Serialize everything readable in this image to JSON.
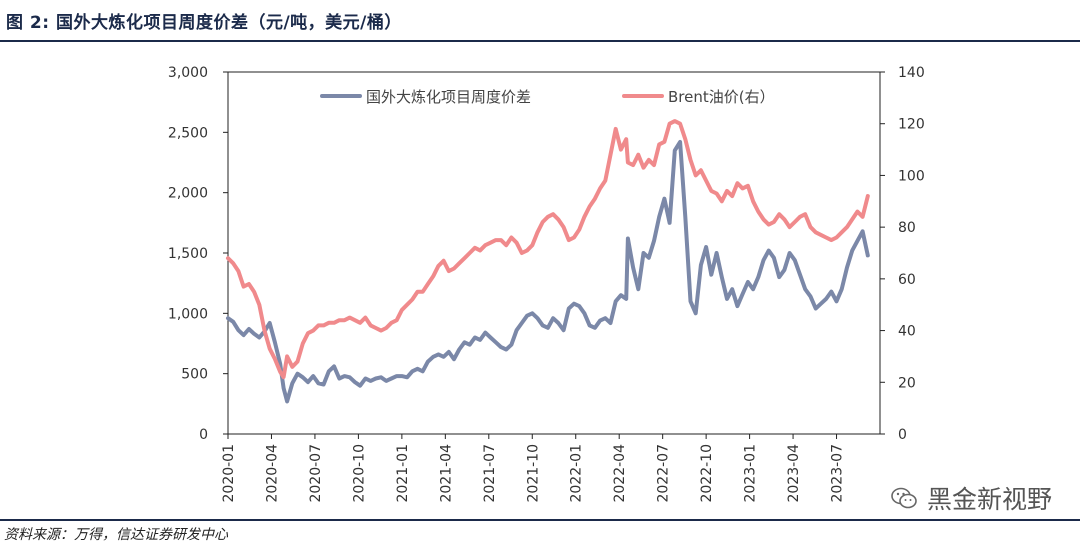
{
  "title": "图 2: 国外大炼化项目周度价差（元/吨，美元/桶）",
  "source": "资料来源：万得，信达证券研发中心",
  "watermark": "黑金新视野",
  "chart_data": {
    "type": "line",
    "title": "",
    "x_ticks": [
      "2020-01",
      "2020-04",
      "2020-07",
      "2020-10",
      "2021-01",
      "2021-04",
      "2021-07",
      "2021-10",
      "2022-01",
      "2022-04",
      "2022-07",
      "2022-10",
      "2023-01",
      "2023-04",
      "2023-07"
    ],
    "x_range": [
      2020.0,
      2023.75
    ],
    "y_left": {
      "range": [
        0,
        3000
      ],
      "ticks": [
        "0",
        "500",
        "1,000",
        "1,500",
        "2,000",
        "2,500",
        "3,000"
      ]
    },
    "y_right": {
      "range": [
        0,
        140
      ],
      "ticks": [
        "0",
        "20",
        "40",
        "60",
        "80",
        "100",
        "120",
        "140"
      ]
    },
    "colors": {
      "spread": "#7b88a8",
      "brent": "#f08a8c"
    },
    "legend_placement": "top",
    "series": [
      {
        "name": "国外大炼化项目周度价差",
        "axis": "left",
        "points": [
          [
            2020.0,
            960
          ],
          [
            2020.03,
            930
          ],
          [
            2020.06,
            860
          ],
          [
            2020.09,
            820
          ],
          [
            2020.12,
            870
          ],
          [
            2020.15,
            830
          ],
          [
            2020.18,
            800
          ],
          [
            2020.21,
            850
          ],
          [
            2020.24,
            920
          ],
          [
            2020.27,
            760
          ],
          [
            2020.3,
            580
          ],
          [
            2020.32,
            380
          ],
          [
            2020.34,
            270
          ],
          [
            2020.37,
            420
          ],
          [
            2020.4,
            500
          ],
          [
            2020.43,
            470
          ],
          [
            2020.46,
            430
          ],
          [
            2020.49,
            480
          ],
          [
            2020.52,
            420
          ],
          [
            2020.55,
            410
          ],
          [
            2020.58,
            520
          ],
          [
            2020.61,
            560
          ],
          [
            2020.64,
            460
          ],
          [
            2020.67,
            480
          ],
          [
            2020.7,
            470
          ],
          [
            2020.73,
            430
          ],
          [
            2020.76,
            400
          ],
          [
            2020.79,
            460
          ],
          [
            2020.82,
            440
          ],
          [
            2020.85,
            460
          ],
          [
            2020.88,
            470
          ],
          [
            2020.91,
            440
          ],
          [
            2020.94,
            460
          ],
          [
            2020.97,
            480
          ],
          [
            2021.0,
            480
          ],
          [
            2021.03,
            470
          ],
          [
            2021.06,
            520
          ],
          [
            2021.09,
            540
          ],
          [
            2021.12,
            520
          ],
          [
            2021.15,
            600
          ],
          [
            2021.18,
            640
          ],
          [
            2021.21,
            660
          ],
          [
            2021.24,
            640
          ],
          [
            2021.27,
            680
          ],
          [
            2021.3,
            620
          ],
          [
            2021.33,
            700
          ],
          [
            2021.36,
            760
          ],
          [
            2021.39,
            740
          ],
          [
            2021.42,
            800
          ],
          [
            2021.45,
            780
          ],
          [
            2021.48,
            840
          ],
          [
            2021.51,
            800
          ],
          [
            2021.54,
            760
          ],
          [
            2021.57,
            720
          ],
          [
            2021.6,
            700
          ],
          [
            2021.63,
            740
          ],
          [
            2021.66,
            860
          ],
          [
            2021.69,
            920
          ],
          [
            2021.72,
            980
          ],
          [
            2021.75,
            1000
          ],
          [
            2021.78,
            960
          ],
          [
            2021.81,
            900
          ],
          [
            2021.84,
            880
          ],
          [
            2021.87,
            960
          ],
          [
            2021.9,
            920
          ],
          [
            2021.93,
            860
          ],
          [
            2021.96,
            1040
          ],
          [
            2021.99,
            1080
          ],
          [
            2022.02,
            1060
          ],
          [
            2022.05,
            1000
          ],
          [
            2022.08,
            900
          ],
          [
            2022.11,
            880
          ],
          [
            2022.14,
            940
          ],
          [
            2022.17,
            960
          ],
          [
            2022.2,
            920
          ],
          [
            2022.23,
            1100
          ],
          [
            2022.26,
            1150
          ],
          [
            2022.29,
            1120
          ],
          [
            2022.3,
            1620
          ],
          [
            2022.33,
            1380
          ],
          [
            2022.36,
            1200
          ],
          [
            2022.39,
            1500
          ],
          [
            2022.42,
            1460
          ],
          [
            2022.45,
            1600
          ],
          [
            2022.48,
            1800
          ],
          [
            2022.51,
            1950
          ],
          [
            2022.54,
            1750
          ],
          [
            2022.57,
            2350
          ],
          [
            2022.6,
            2420
          ],
          [
            2022.63,
            1800
          ],
          [
            2022.66,
            1100
          ],
          [
            2022.69,
            1000
          ],
          [
            2022.72,
            1400
          ],
          [
            2022.75,
            1550
          ],
          [
            2022.78,
            1320
          ],
          [
            2022.81,
            1500
          ],
          [
            2022.84,
            1300
          ],
          [
            2022.87,
            1120
          ],
          [
            2022.9,
            1200
          ],
          [
            2022.93,
            1060
          ],
          [
            2022.96,
            1160
          ],
          [
            2022.99,
            1260
          ],
          [
            2023.02,
            1200
          ],
          [
            2023.05,
            1300
          ],
          [
            2023.08,
            1440
          ],
          [
            2023.11,
            1520
          ],
          [
            2023.14,
            1460
          ],
          [
            2023.17,
            1300
          ],
          [
            2023.2,
            1360
          ],
          [
            2023.23,
            1500
          ],
          [
            2023.26,
            1440
          ],
          [
            2023.29,
            1320
          ],
          [
            2023.32,
            1200
          ],
          [
            2023.35,
            1140
          ],
          [
            2023.38,
            1040
          ],
          [
            2023.41,
            1080
          ],
          [
            2023.44,
            1120
          ],
          [
            2023.47,
            1180
          ],
          [
            2023.5,
            1100
          ],
          [
            2023.53,
            1200
          ],
          [
            2023.56,
            1380
          ],
          [
            2023.59,
            1520
          ],
          [
            2023.62,
            1600
          ],
          [
            2023.65,
            1680
          ],
          [
            2023.68,
            1480
          ]
        ]
      },
      {
        "name": "Brent油价(右）",
        "axis": "right",
        "points": [
          [
            2020.0,
            68
          ],
          [
            2020.03,
            66
          ],
          [
            2020.06,
            63
          ],
          [
            2020.09,
            57
          ],
          [
            2020.12,
            58
          ],
          [
            2020.15,
            55
          ],
          [
            2020.18,
            50
          ],
          [
            2020.21,
            40
          ],
          [
            2020.24,
            33
          ],
          [
            2020.27,
            29
          ],
          [
            2020.3,
            24
          ],
          [
            2020.32,
            22
          ],
          [
            2020.34,
            30
          ],
          [
            2020.37,
            26
          ],
          [
            2020.4,
            28
          ],
          [
            2020.43,
            35
          ],
          [
            2020.46,
            39
          ],
          [
            2020.49,
            40
          ],
          [
            2020.52,
            42
          ],
          [
            2020.55,
            42
          ],
          [
            2020.58,
            43
          ],
          [
            2020.61,
            43
          ],
          [
            2020.64,
            44
          ],
          [
            2020.67,
            44
          ],
          [
            2020.7,
            45
          ],
          [
            2020.73,
            44
          ],
          [
            2020.76,
            43
          ],
          [
            2020.79,
            45
          ],
          [
            2020.82,
            42
          ],
          [
            2020.85,
            41
          ],
          [
            2020.88,
            40
          ],
          [
            2020.91,
            41
          ],
          [
            2020.94,
            43
          ],
          [
            2020.97,
            44
          ],
          [
            2021.0,
            48
          ],
          [
            2021.03,
            50
          ],
          [
            2021.06,
            52
          ],
          [
            2021.09,
            55
          ],
          [
            2021.12,
            55
          ],
          [
            2021.15,
            58
          ],
          [
            2021.18,
            61
          ],
          [
            2021.21,
            65
          ],
          [
            2021.24,
            67
          ],
          [
            2021.27,
            63
          ],
          [
            2021.3,
            64
          ],
          [
            2021.33,
            66
          ],
          [
            2021.36,
            68
          ],
          [
            2021.39,
            70
          ],
          [
            2021.42,
            72
          ],
          [
            2021.45,
            71
          ],
          [
            2021.48,
            73
          ],
          [
            2021.51,
            74
          ],
          [
            2021.54,
            75
          ],
          [
            2021.57,
            75
          ],
          [
            2021.6,
            73
          ],
          [
            2021.63,
            76
          ],
          [
            2021.66,
            74
          ],
          [
            2021.69,
            70
          ],
          [
            2021.72,
            71
          ],
          [
            2021.75,
            73
          ],
          [
            2021.78,
            78
          ],
          [
            2021.81,
            82
          ],
          [
            2021.84,
            84
          ],
          [
            2021.87,
            85
          ],
          [
            2021.9,
            83
          ],
          [
            2021.93,
            80
          ],
          [
            2021.96,
            75
          ],
          [
            2021.99,
            76
          ],
          [
            2022.02,
            79
          ],
          [
            2022.05,
            84
          ],
          [
            2022.08,
            88
          ],
          [
            2022.11,
            91
          ],
          [
            2022.14,
            95
          ],
          [
            2022.17,
            98
          ],
          [
            2022.2,
            108
          ],
          [
            2022.23,
            118
          ],
          [
            2022.26,
            110
          ],
          [
            2022.29,
            114
          ],
          [
            2022.3,
            105
          ],
          [
            2022.33,
            104
          ],
          [
            2022.36,
            108
          ],
          [
            2022.39,
            103
          ],
          [
            2022.42,
            106
          ],
          [
            2022.45,
            104
          ],
          [
            2022.48,
            112
          ],
          [
            2022.51,
            113
          ],
          [
            2022.54,
            120
          ],
          [
            2022.57,
            121
          ],
          [
            2022.6,
            120
          ],
          [
            2022.63,
            114
          ],
          [
            2022.66,
            106
          ],
          [
            2022.69,
            100
          ],
          [
            2022.72,
            102
          ],
          [
            2022.75,
            98
          ],
          [
            2022.78,
            94
          ],
          [
            2022.81,
            93
          ],
          [
            2022.84,
            90
          ],
          [
            2022.87,
            94
          ],
          [
            2022.9,
            92
          ],
          [
            2022.93,
            97
          ],
          [
            2022.96,
            95
          ],
          [
            2022.99,
            96
          ],
          [
            2023.02,
            90
          ],
          [
            2023.05,
            86
          ],
          [
            2023.08,
            83
          ],
          [
            2023.11,
            81
          ],
          [
            2023.14,
            82
          ],
          [
            2023.17,
            85
          ],
          [
            2023.2,
            83
          ],
          [
            2023.23,
            80
          ],
          [
            2023.26,
            82
          ],
          [
            2023.29,
            84
          ],
          [
            2023.32,
            85
          ],
          [
            2023.35,
            80
          ],
          [
            2023.38,
            78
          ],
          [
            2023.41,
            77
          ],
          [
            2023.44,
            76
          ],
          [
            2023.47,
            75
          ],
          [
            2023.5,
            76
          ],
          [
            2023.53,
            78
          ],
          [
            2023.56,
            80
          ],
          [
            2023.59,
            83
          ],
          [
            2023.62,
            86
          ],
          [
            2023.65,
            84
          ],
          [
            2023.68,
            92
          ]
        ]
      }
    ]
  }
}
